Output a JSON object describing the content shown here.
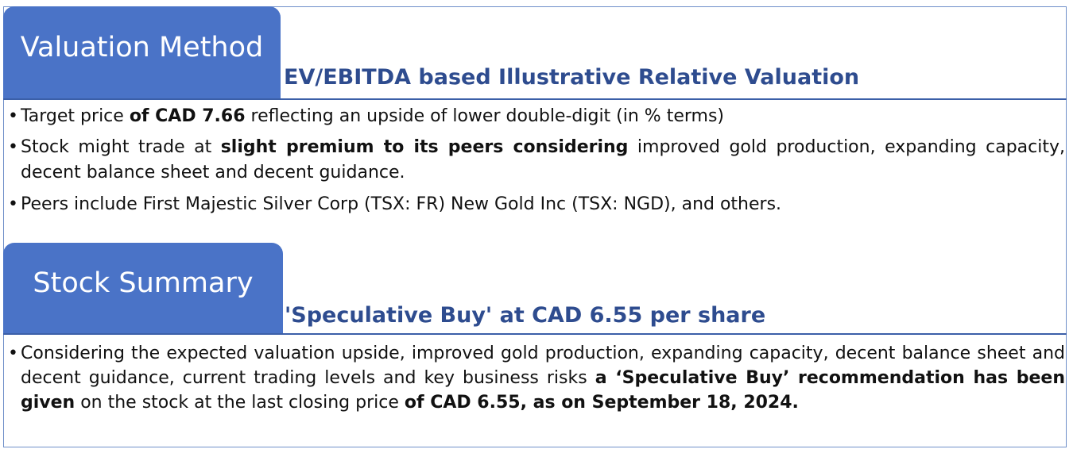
{
  "valuation": {
    "tab_label": "Valuation Method",
    "subtitle": "EV/EBITDA based Illustrative Relative Valuation",
    "bullets": [
      {
        "parts": [
          "Target price ",
          "of CAD 7.66",
          " reflecting an upside of lower double-digit (in % terms)"
        ]
      },
      {
        "parts": [
          "Stock might trade at ",
          "slight premium to its peers considering",
          " improved gold production, expanding capacity, decent balance sheet and decent guidance."
        ]
      },
      {
        "parts": [
          "Peers include First Majestic Silver Corp (TSX: FR) New Gold Inc (TSX: NGD), and others."
        ]
      }
    ]
  },
  "summary": {
    "tab_label": "Stock Summary",
    "subtitle": "'Speculative Buy' at CAD 6.55 per share",
    "bullets": [
      {
        "parts": [
          "Considering the expected valuation upside, improved gold production, expanding capacity, decent balance sheet and decent guidance, current trading levels and key business risks ",
          "a ‘Speculative Buy’ recommendation has been given",
          " on the stock at the last closing price ",
          "of CAD 6.55, as on September 18, 2024."
        ]
      }
    ]
  },
  "bullet_glyph": "•"
}
